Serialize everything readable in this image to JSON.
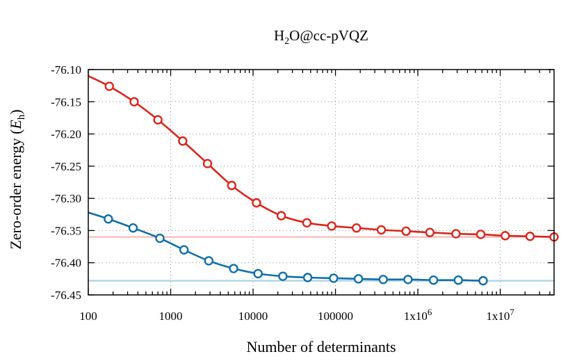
{
  "chart_data": {
    "type": "line",
    "title": {
      "main": "H",
      "sub": "2",
      "rest": "O@cc-pVQZ"
    },
    "xlabel": "Number of determinants",
    "ylabel": {
      "main": "Zero-order energy (",
      "italic": "E",
      "sub": "h",
      "close": ")"
    },
    "xscale": "log",
    "xlim": [
      100,
      45000000
    ],
    "ylim": [
      -76.45,
      -76.1
    ],
    "grid": true,
    "x_ticks": [
      {
        "value": 100,
        "label": "100"
      },
      {
        "value": 1000,
        "label": "1000"
      },
      {
        "value": 10000,
        "label": "10000"
      },
      {
        "value": 100000,
        "label": "100000"
      },
      {
        "value": 1000000,
        "label": "1x10",
        "exp": "6"
      },
      {
        "value": 10000000,
        "label": "1x10",
        "exp": "7"
      }
    ],
    "y_ticks": [
      {
        "value": -76.1,
        "label": "-76.10"
      },
      {
        "value": -76.15,
        "label": "-76.15"
      },
      {
        "value": -76.2,
        "label": "-76.20"
      },
      {
        "value": -76.25,
        "label": "-76.25"
      },
      {
        "value": -76.3,
        "label": "-76.30"
      },
      {
        "value": -76.35,
        "label": "-76.35"
      },
      {
        "value": -76.4,
        "label": "-76.40"
      },
      {
        "value": -76.45,
        "label": "-76.45"
      }
    ],
    "series": [
      {
        "color": "#d9261c",
        "curve_start": [
          100,
          -76.11
        ],
        "x": [
          180,
          360,
          700,
          1400,
          2800,
          5500,
          11000,
          22000,
          45000,
          90000,
          180000,
          360000,
          720000,
          1400000,
          2900000,
          5800000,
          11500000,
          23000000,
          45000000
        ],
        "y": [
          -76.126,
          -76.15,
          -76.178,
          -76.211,
          -76.246,
          -76.28,
          -76.307,
          -76.327,
          -76.338,
          -76.343,
          -76.346,
          -76.349,
          -76.351,
          -76.353,
          -76.355,
          -76.356,
          -76.358,
          -76.359,
          -76.36
        ]
      },
      {
        "color": "#0f6fa8",
        "curve_start": [
          100,
          -76.322
        ],
        "x": [
          175,
          350,
          740,
          1450,
          2900,
          5800,
          11500,
          23000,
          46000,
          95000,
          190000,
          380000,
          760000,
          1550000,
          3100000,
          6200000
        ],
        "y": [
          -76.332,
          -76.346,
          -76.362,
          -76.38,
          -76.397,
          -76.409,
          -76.417,
          -76.421,
          -76.423,
          -76.424,
          -76.425,
          -76.426,
          -76.426,
          -76.427,
          -76.427,
          -76.428
        ]
      }
    ],
    "reference_lines": [
      {
        "y": -76.36,
        "color": "#f5b8b8"
      },
      {
        "y": -76.428,
        "color": "#a9d3e6"
      }
    ]
  }
}
